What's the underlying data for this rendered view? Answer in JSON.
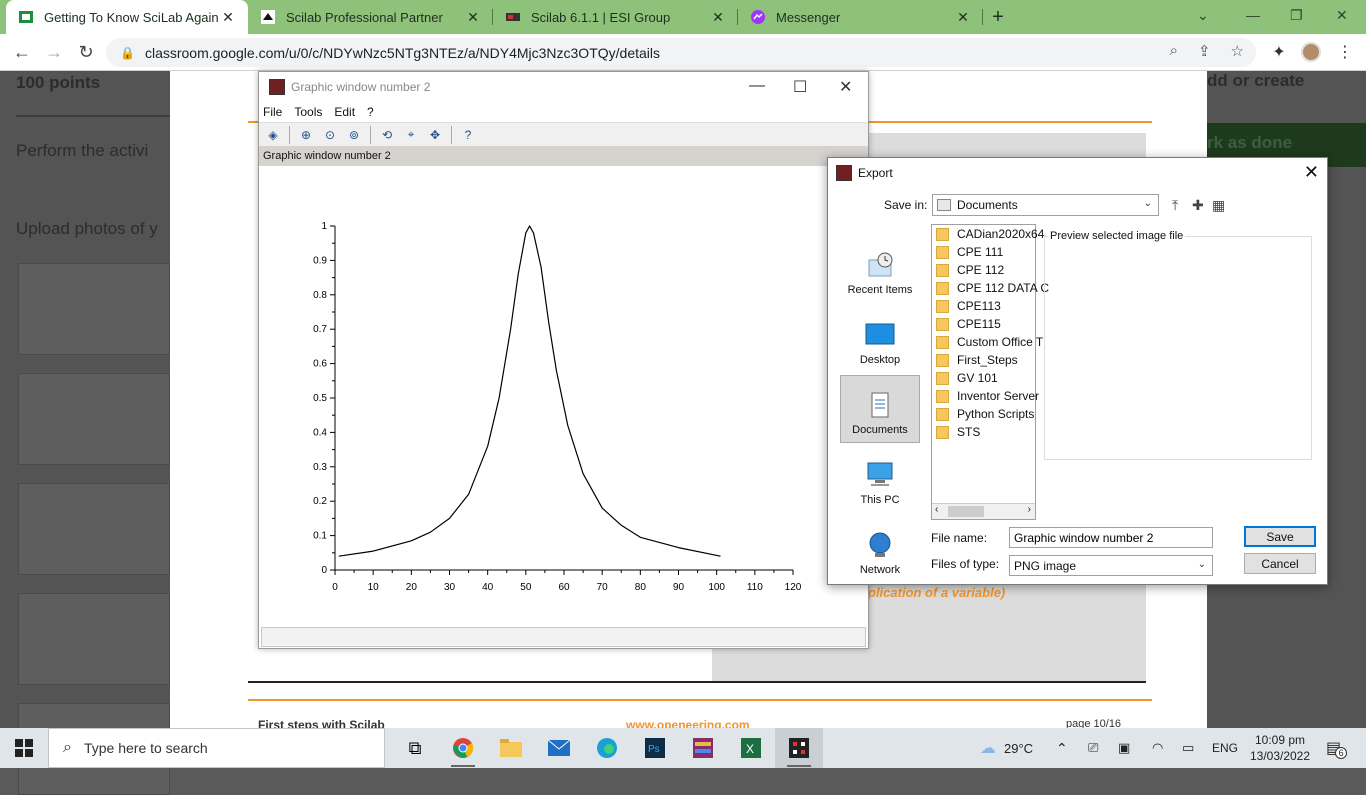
{
  "browser": {
    "tabs": [
      {
        "title": "Getting To Know SciLab Again",
        "active": true
      },
      {
        "title": "Scilab Professional Partner",
        "active": false
      },
      {
        "title": "Scilab 6.1.1 | ESI Group",
        "active": false
      },
      {
        "title": "Messenger",
        "active": false
      }
    ],
    "url": "classroom.google.com/u/0/c/NDYwNzc5NTg3NTEz/a/NDY4Mjc3Nzc3OTQy/details"
  },
  "classroom": {
    "points": "100 points",
    "perform": "Perform the activi",
    "upload": "Upload photos of y",
    "add_create": "dd or create",
    "mark_done": "rk as done",
    "doc_footer_left": "First steps with Scilab",
    "doc_footer_mid": "www.openeering.com",
    "doc_footer_right": "page 10/16",
    "doc_orange_text": "plication of a variable)"
  },
  "graphic_window": {
    "title": "Graphic window number 2",
    "menu": [
      "File",
      "Tools",
      "Edit",
      "?"
    ],
    "caption": "Graphic window number 2"
  },
  "chart_data": {
    "type": "line",
    "title": "",
    "xlabel": "",
    "ylabel": "",
    "xlim": [
      0,
      120
    ],
    "ylim": [
      0,
      1
    ],
    "xticks": [
      0,
      10,
      20,
      30,
      40,
      50,
      60,
      70,
      80,
      90,
      100,
      110,
      120
    ],
    "yticks": [
      0,
      0.1,
      0.2,
      0.3,
      0.4,
      0.5,
      0.6,
      0.7,
      0.8,
      0.9,
      1
    ],
    "ytick_labels": [
      "0",
      "0.1",
      "0.2",
      "0.3",
      "0.4",
      "0.5",
      "0.6",
      "0.7",
      "0.8",
      "0.9",
      "1"
    ],
    "series": [
      {
        "x": [
          1,
          10,
          20,
          25,
          30,
          35,
          40,
          43,
          46,
          48,
          50,
          51,
          52,
          54,
          56,
          58,
          61,
          65,
          70,
          75,
          80,
          90,
          101
        ],
        "values": [
          0.04,
          0.055,
          0.085,
          0.11,
          0.15,
          0.22,
          0.36,
          0.5,
          0.7,
          0.86,
          0.98,
          1.0,
          0.98,
          0.88,
          0.72,
          0.58,
          0.42,
          0.28,
          0.18,
          0.13,
          0.095,
          0.065,
          0.04
        ]
      }
    ]
  },
  "export_dialog": {
    "title": "Export",
    "save_in_label": "Save in:",
    "save_in_value": "Documents",
    "places": [
      "Recent Items",
      "Desktop",
      "Documents",
      "This PC",
      "Network"
    ],
    "files": [
      "CADian2020x64",
      "CPE 111",
      "CPE 112",
      "CPE 112 DATA C",
      "CPE113",
      "CPE115",
      "Custom Office T",
      "First_Steps",
      "GV 101",
      "Inventor Server",
      "Python Scripts",
      "STS"
    ],
    "preview_label": "Preview selected image file",
    "file_name_label": "File name:",
    "file_name_value": "Graphic window number 2",
    "file_type_label": "Files of type:",
    "file_type_value": "PNG image",
    "save_label": "Save",
    "cancel_label": "Cancel"
  },
  "taskbar": {
    "search_placeholder": "Type here to search",
    "temperature": "29°C",
    "language": "ENG",
    "time": "10:09 pm",
    "date": "13/03/2022",
    "notifications": "6"
  },
  "colors": {
    "browser_green": "#8ec27a",
    "accent_orange": "#f0962a",
    "save_border": "#0078d7"
  }
}
